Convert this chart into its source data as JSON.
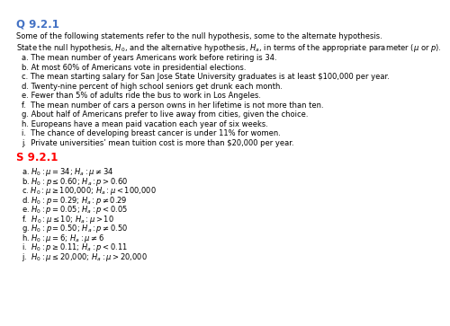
{
  "title": "Q 9.2.1",
  "solution_title": "S 9.2.1",
  "title_color": "#4472C4",
  "solution_color": "#FF0000",
  "bg_color": "#FFFFFF",
  "intro_line1": "Some of the following statements refer to the null hypothesis, some to the alternate hypothesis.",
  "intro_line2": "State the null hypothesis, $H_0$, and the alternative hypothesis, $H_a$, in terms of the appropriate parameter ($\\mu$ or $p$).",
  "questions": [
    "a. The mean number of years Americans work before retiring is 34.",
    "b. At most 60% of Americans vote in presidential elections.",
    "c. The mean starting salary for San Jose State University graduates is at least $100,000 per year.",
    "d. Twenty-nine percent of high school seniors get drunk each month.",
    "e. Fewer than 5% of adults ride the bus to work in Los Angeles.",
    "f.  The mean number of cars a person owns in her lifetime is not more than ten.",
    "g. About half of Americans prefer to live away from cities, given the choice.",
    "h. Europeans have a mean paid vacation each year of six weeks.",
    "i.  The chance of developing breast cancer is under 11% for women.",
    "j.  Private universities’ mean tuition cost is more than $20,000 per year."
  ],
  "solutions": [
    "a. $H_0 : \\mu = 34$; $H_a : \\mu \\neq 34$",
    "b. $H_0 : p \\leq 0.60$; $H_a : p > 0.60$",
    "c. $H_0 : \\mu \\geq 100{,}000$; $H_a : \\mu < 100{,}000$",
    "d. $H_0 : p = 0.29$; $H_a : p \\neq 0.29$",
    "e. $H_0 : p = 0.05$; $H_a : p < 0.05$",
    "f.  $H_0 : \\mu \\leq 10$; $H_a : \\mu > 10$",
    "g. $H_0 : p = 0.50$; $H_a : p \\neq 0.50$",
    "h. $H_0 : \\mu = 6$; $H_a : \\mu \\neq 6$",
    "i.  $H_0 : p \\geq 0.11$; $H_a : p < 0.11$",
    "j.  $H_0 : \\mu \\leq 20{,}000$; $H_a : \\mu > 20{,}000$"
  ],
  "font_size_title": 8.5,
  "font_size_text": 6.0,
  "font_size_sol_title": 8.5,
  "font_size_sol": 6.0
}
